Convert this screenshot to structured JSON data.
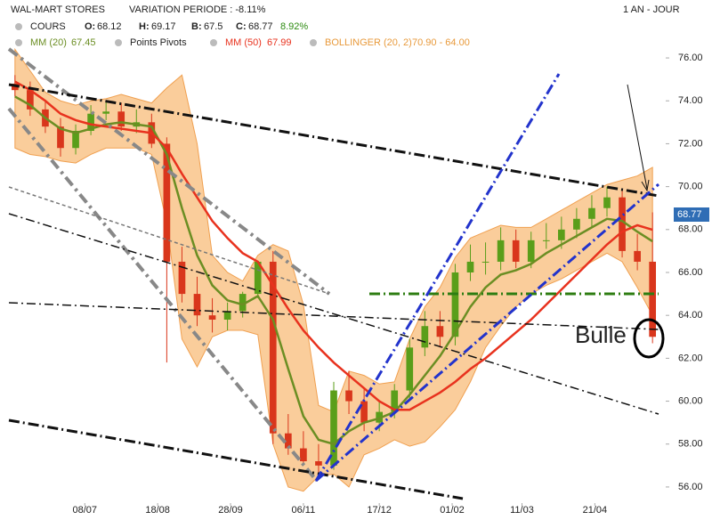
{
  "chart_data": {
    "type": "candlestick",
    "header": {
      "title": "WAL-MART STORES",
      "variation": "VARIATION PERIODE : -8.11%",
      "period": "1 AN - JOUR",
      "cours": "COURS",
      "o_label": "O:",
      "open": 68.12,
      "h_label": "H:",
      "high": 69.17,
      "b_label": "B:",
      "low": 67.5,
      "c_label": "C:",
      "close": 68.77,
      "change": "8.92%",
      "pivots": "Points Pivots"
    },
    "annotation": "Bulle",
    "up_color": "#5a9e1a",
    "down_color": "#d9361c",
    "x": [
      2,
      7,
      12,
      17,
      22,
      27,
      32,
      37,
      42,
      47,
      52,
      57,
      62,
      67,
      72,
      77,
      82,
      87,
      92,
      97,
      102,
      107,
      112,
      117,
      122,
      127,
      132,
      137,
      142,
      147,
      152,
      157,
      162,
      167,
      172,
      177,
      182,
      187,
      192,
      197,
      202,
      207,
      212
    ],
    "open": [
      74.8,
      74.5,
      73.6,
      72.8,
      71.8,
      72.6,
      73.4,
      73.5,
      72.8,
      73.0,
      72.0,
      66.5,
      65.0,
      64.0,
      63.8,
      64.2,
      65.0,
      66.5,
      58.5,
      57.8,
      57.2,
      57.0,
      60.5,
      60.0,
      59.0,
      59.5,
      60.5,
      62.5,
      63.5,
      63.0,
      66.0,
      66.5,
      66.5,
      67.5,
      66.5,
      67.5,
      67.5,
      68.0,
      68.5,
      69.0,
      69.5,
      67.0,
      66.5
    ],
    "high": [
      75.2,
      74.9,
      74.0,
      73.2,
      72.9,
      73.8,
      74.0,
      73.9,
      73.6,
      73.4,
      72.3,
      67.2,
      65.8,
      64.8,
      64.6,
      65.1,
      66.4,
      67.0,
      59.4,
      58.6,
      58.0,
      60.9,
      61.4,
      60.6,
      60.0,
      60.8,
      62.9,
      64.2,
      64.2,
      66.4,
      67.3,
      67.4,
      68.1,
      68.0,
      67.9,
      68.3,
      68.6,
      69.0,
      69.6,
      70.0,
      69.9,
      67.8,
      68.8
    ],
    "low": [
      74.2,
      73.3,
      72.5,
      71.4,
      71.5,
      72.4,
      73.1,
      72.6,
      72.5,
      71.8,
      61.8,
      64.6,
      63.5,
      63.2,
      63.3,
      63.9,
      64.8,
      58.0,
      57.5,
      57.0,
      56.6,
      56.8,
      59.4,
      58.6,
      58.6,
      59.2,
      60.1,
      62.1,
      62.5,
      62.6,
      65.6,
      65.9,
      66.1,
      66.2,
      66.2,
      67.1,
      67.1,
      67.6,
      68.1,
      68.6,
      66.7,
      66.1,
      62.7
    ],
    "close": [
      74.5,
      73.6,
      72.8,
      71.8,
      72.6,
      73.4,
      73.5,
      72.8,
      73.0,
      72.0,
      66.5,
      65.0,
      64.0,
      63.8,
      64.2,
      65.0,
      66.5,
      58.5,
      57.8,
      57.2,
      57.0,
      60.5,
      60.0,
      59.0,
      59.5,
      60.5,
      62.5,
      63.5,
      63.0,
      66.0,
      66.5,
      66.5,
      67.5,
      66.5,
      67.5,
      67.5,
      68.0,
      68.5,
      69.0,
      69.5,
      67.0,
      66.5,
      63.0
    ],
    "series": [
      {
        "name": "MM (20)",
        "legend_value": 67.45,
        "color": "#6b8e23",
        "values": [
          74.2,
          73.8,
          73.2,
          72.7,
          72.5,
          72.7,
          72.9,
          73.0,
          72.9,
          72.8,
          71.5,
          69.0,
          66.8,
          65.4,
          64.7,
          64.5,
          64.9,
          63.8,
          61.5,
          59.3,
          58.2,
          58.0,
          58.6,
          59.0,
          59.2,
          59.5,
          60.3,
          61.2,
          62.1,
          63.2,
          64.4,
          65.3,
          65.9,
          66.1,
          66.4,
          66.9,
          67.3,
          67.7,
          68.1,
          68.5,
          68.4,
          67.9,
          67.45
        ]
      },
      {
        "name": "MM (50)",
        "legend_value": 67.99,
        "color": "#e8321e",
        "values": [
          74.9,
          74.5,
          74.0,
          73.4,
          73.1,
          72.9,
          72.8,
          72.7,
          72.6,
          72.5,
          71.8,
          70.6,
          69.5,
          68.4,
          67.6,
          66.9,
          66.5,
          65.4,
          64.3,
          63.3,
          62.5,
          61.8,
          61.2,
          60.6,
          60.0,
          59.6,
          59.6,
          60.0,
          60.4,
          60.9,
          61.5,
          62.0,
          62.6,
          63.2,
          63.8,
          64.5,
          65.2,
          65.9,
          66.6,
          67.3,
          67.9,
          68.2,
          67.99
        ]
      },
      {
        "name": "BOLLINGER (20, 2)",
        "legend_value": "70.90 - 64.00",
        "color": "#f9c48a",
        "upper": [
          76.4,
          75.4,
          74.4,
          74.0,
          73.8,
          74.0,
          74.1,
          74.3,
          74.1,
          73.9,
          74.6,
          75.2,
          72.0,
          66.8,
          66.0,
          65.6,
          66.8,
          67.3,
          67.0,
          64.5,
          59.8,
          59.5,
          61.4,
          61.2,
          60.8,
          60.9,
          62.9,
          64.4,
          65.3,
          66.7,
          67.6,
          67.9,
          68.2,
          68.1,
          68.1,
          68.5,
          68.9,
          69.3,
          69.7,
          70.1,
          70.3,
          70.5,
          70.9
        ],
        "lower": [
          71.8,
          71.5,
          71.4,
          71.2,
          71.1,
          71.5,
          71.8,
          71.8,
          71.8,
          71.5,
          68.3,
          62.9,
          61.6,
          63.0,
          63.3,
          63.3,
          63.1,
          58.0,
          56.0,
          55.8,
          56.5,
          56.6,
          56.0,
          57.5,
          57.8,
          58.2,
          57.9,
          58.1,
          58.8,
          59.6,
          60.9,
          62.5,
          63.5,
          64.4,
          65.0,
          65.4,
          65.7,
          66.1,
          66.5,
          66.9,
          66.5,
          65.3,
          64.0
        ]
      }
    ],
    "xlim": [
      0,
      214
    ],
    "xticks": [
      {
        "value": 25,
        "label": "08/07"
      },
      {
        "value": 49,
        "label": "18/08"
      },
      {
        "value": 73,
        "label": "28/09"
      },
      {
        "value": 97,
        "label": "06/11"
      },
      {
        "value": 122,
        "label": "17/12"
      },
      {
        "value": 146,
        "label": "01/02"
      },
      {
        "value": 169,
        "label": "11/03"
      },
      {
        "value": 193,
        "label": "21/04"
      }
    ],
    "ylim": [
      55.25,
      78.7
    ],
    "yticks": [
      {
        "value": 56,
        "label": "56.00"
      },
      {
        "value": 58,
        "label": "58.00"
      },
      {
        "value": 60,
        "label": "60.00"
      },
      {
        "value": 62,
        "label": "62.00"
      },
      {
        "value": 64,
        "label": "64.00"
      },
      {
        "value": 66,
        "label": "66.00"
      },
      {
        "value": 68,
        "label": "68.00"
      },
      {
        "value": 70,
        "label": "70.00"
      },
      {
        "value": 72,
        "label": "72.00"
      },
      {
        "value": 74,
        "label": "74.00"
      },
      {
        "value": 76,
        "label": "76.00"
      }
    ],
    "grid": false
  }
}
